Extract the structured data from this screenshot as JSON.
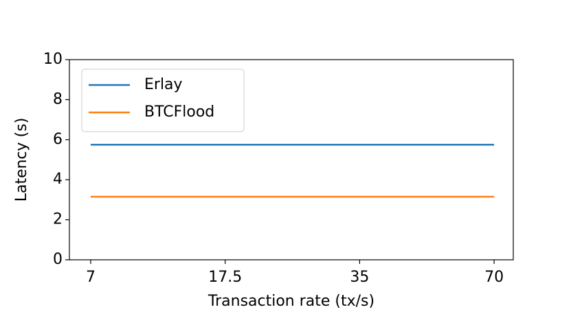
{
  "chart_data": {
    "type": "line",
    "x_label": "Transaction rate (tx/s)",
    "y_label": "Latency (s)",
    "categories": [
      "7",
      "17.5",
      "35",
      "70"
    ],
    "series": [
      {
        "name": "Erlay",
        "color": "#1f77b4",
        "values": [
          5.75,
          5.75,
          5.75,
          5.75
        ]
      },
      {
        "name": "BTCFlood",
        "color": "#ff7f0e",
        "values": [
          3.15,
          3.15,
          3.15,
          3.15
        ]
      }
    ],
    "ylim": [
      0,
      10
    ],
    "yticks": [
      0,
      2,
      4,
      6,
      8,
      10
    ],
    "grid": false,
    "legend": "upper left"
  }
}
